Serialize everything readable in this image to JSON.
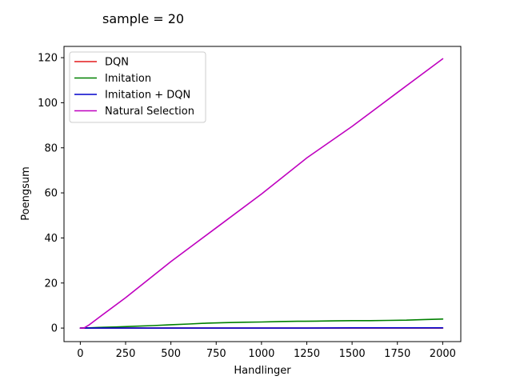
{
  "chart_data": {
    "type": "line",
    "title": "sample = 20",
    "xlabel": "Handlinger",
    "ylabel": "Poengsum",
    "xlim": [
      -90,
      2100
    ],
    "ylim": [
      -6,
      125
    ],
    "xticks": [
      0,
      250,
      500,
      750,
      1000,
      1250,
      1500,
      1750,
      2000
    ],
    "yticks": [
      0,
      20,
      40,
      60,
      80,
      100,
      120
    ],
    "xtick_labels": [
      "0",
      "250",
      "500",
      "750",
      "1000",
      "1250",
      "1500",
      "1750",
      "2000"
    ],
    "ytick_labels": [
      "0",
      "20",
      "40",
      "60",
      "80",
      "100",
      "120"
    ],
    "grid": false,
    "legend_position": "top-left",
    "series": [
      {
        "name": "DQN",
        "color": "#e41a1c",
        "x": [
          0,
          250,
          500,
          750,
          1000,
          1250,
          1500,
          1750,
          2000
        ],
        "y": [
          0,
          0,
          0,
          0,
          0,
          0,
          0,
          0,
          0
        ]
      },
      {
        "name": "Imitation",
        "color": "#008000",
        "x": [
          0,
          50,
          100,
          200,
          300,
          400,
          500,
          600,
          700,
          800,
          900,
          1000,
          1100,
          1200,
          1300,
          1400,
          1500,
          1600,
          1700,
          1800,
          1900,
          2000
        ],
        "y": [
          0,
          0.1,
          0.3,
          0.5,
          0.8,
          1.1,
          1.5,
          1.8,
          2.2,
          2.4,
          2.6,
          2.7,
          2.9,
          3.0,
          3.1,
          3.2,
          3.3,
          3.3,
          3.4,
          3.5,
          3.8,
          4.0
        ]
      },
      {
        "name": "Imitation + DQN",
        "color": "#0000cc",
        "x": [
          0,
          250,
          500,
          750,
          1000,
          1250,
          1500,
          1750,
          2000
        ],
        "y": [
          0,
          0,
          0,
          0,
          0,
          0,
          0.1,
          0.1,
          0.1
        ]
      },
      {
        "name": "Natural Selection",
        "color": "#bf00bf",
        "x": [
          0,
          20,
          50,
          100,
          250,
          500,
          750,
          1000,
          1250,
          1500,
          1750,
          2000
        ],
        "y": [
          0,
          0,
          1.5,
          4.5,
          13.5,
          29.5,
          44.5,
          59.5,
          75.5,
          89.5,
          104.5,
          119.5
        ]
      }
    ]
  }
}
